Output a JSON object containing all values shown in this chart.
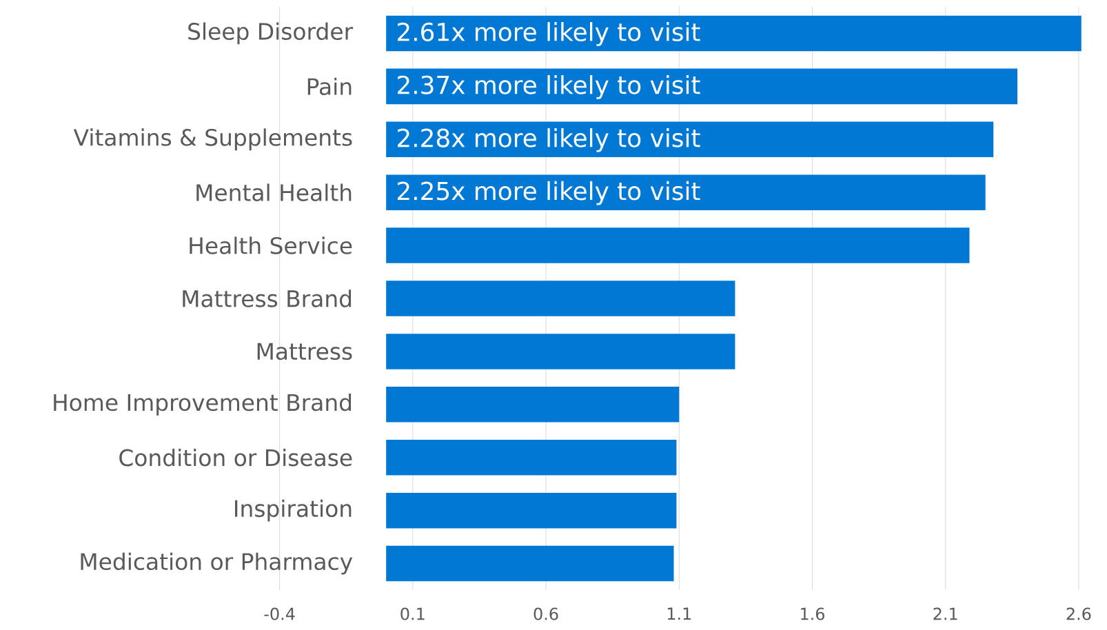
{
  "chart_data": {
    "type": "bar",
    "orientation": "horizontal",
    "categories": [
      "Sleep Disorder",
      "Pain",
      "Vitamins & Supplements",
      "Mental Health",
      "Health Service",
      "Mattress Brand",
      "Mattress",
      "Home Improvement Brand",
      "Condition or Disease",
      "Inspiration",
      "Medication or Pharmacy"
    ],
    "values": [
      2.61,
      2.37,
      2.28,
      2.25,
      2.19,
      1.31,
      1.31,
      1.1,
      1.09,
      1.09,
      1.08
    ],
    "value_labels": [
      "2.61x more likely to visit",
      "2.37x more likely to visit",
      "2.28x more likely to visit",
      "2.25x more likely to visit",
      null,
      null,
      null,
      null,
      null,
      null,
      null
    ],
    "color": "#0078d4",
    "xlim": [
      -0.4,
      2.62
    ],
    "xticks": [
      -0.4,
      0.1,
      0.6,
      1.1,
      1.6,
      2.1,
      2.6
    ],
    "grid": "x"
  }
}
